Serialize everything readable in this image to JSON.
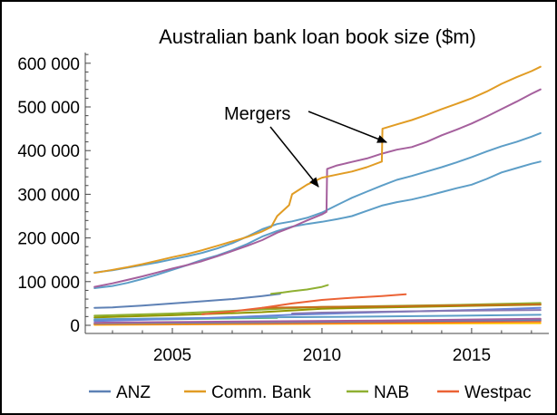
{
  "chart_data": {
    "type": "line",
    "title": "Australian bank loan book size ($m)",
    "xlabel": "",
    "ylabel": "",
    "xlim": [
      2002.09,
      2017.58
    ],
    "ylim": [
      -18700,
      624500
    ],
    "xticks": [
      2005,
      2010,
      2015
    ],
    "xtick_labels": [
      "2005",
      "2010",
      "2015"
    ],
    "yticks": [
      0,
      100000,
      200000,
      300000,
      400000,
      500000,
      600000
    ],
    "ytick_labels": [
      "0",
      "100 000",
      "200 000",
      "300 000",
      "400 000",
      "500 000",
      "600 000"
    ],
    "grid": false,
    "legend": {
      "position": "bottom",
      "entries": [
        {
          "label": "ANZ",
          "color": "#5e81b5"
        },
        {
          "label": "Comm. Bank",
          "color": "#e19c24"
        },
        {
          "label": "NAB",
          "color": "#8fb032"
        },
        {
          "label": "Westpac",
          "color": "#eb6235"
        }
      ]
    },
    "annotations": [
      {
        "text": "Mergers"
      }
    ],
    "series": [
      {
        "color": "#ffbf00",
        "x": [
          2002.4,
          2009.0,
          2017.3
        ],
        "y": [
          1000,
          3000,
          5000
        ]
      },
      {
        "color": "#eb6235",
        "x": [
          2002.4,
          2008.0,
          2012.0,
          2017.3
        ],
        "y": [
          2000,
          4000,
          6000,
          9000
        ]
      },
      {
        "color": "#e19c24",
        "x": [
          2002.4,
          2008.0,
          2012.0,
          2017.3
        ],
        "y": [
          3000,
          6000,
          9000,
          13000
        ]
      },
      {
        "color": "#5e81b5",
        "x": [
          2002.4,
          2010.0,
          2017.3
        ],
        "y": [
          5000,
          8000,
          12000
        ]
      },
      {
        "color": "#a5609d",
        "x": [
          2002.4,
          2008.0,
          2012.0,
          2017.3
        ],
        "y": [
          6000,
          9000,
          11000,
          15000
        ]
      },
      {
        "color": "#47b66d",
        "x": [
          2002.4,
          2005.0,
          2008.5
        ],
        "y": [
          12000,
          14000,
          17000
        ]
      },
      {
        "color": "#5d9ec7",
        "x": [
          2002.4,
          2008.0,
          2012.0,
          2017.3
        ],
        "y": [
          14000,
          18000,
          20000,
          24000
        ]
      },
      {
        "color": "#6685d9",
        "x": [
          2002.4,
          2006.0,
          2009.0,
          2012.0,
          2015.0,
          2017.3
        ],
        "y": [
          10000,
          16000,
          24000,
          30000,
          35000,
          40000
        ]
      },
      {
        "color": "#8778b3",
        "x": [
          2009.0,
          2010.0,
          2012.0,
          2014.0,
          2017.3
        ],
        "y": [
          27000,
          29000,
          31000,
          33000,
          35000
        ]
      },
      {
        "color": "#929600",
        "x": [
          2002.4,
          2005.0,
          2008.0,
          2010.0,
          2013.0,
          2017.3
        ],
        "y": [
          18000,
          23000,
          30000,
          38000,
          42000,
          47000
        ]
      },
      {
        "color": "#8fb032",
        "x": [
          2002.4,
          2005.0,
          2008.0,
          2010.0,
          2012.0,
          2014.0,
          2017.3
        ],
        "y": [
          22000,
          27000,
          36000,
          42000,
          44000,
          46000,
          51000
        ]
      },
      {
        "color": "#c56e1a",
        "x": [
          2008.0,
          2010.0,
          2012.0,
          2014.0,
          2017.3
        ],
        "y": [
          40000,
          42000,
          43000,
          45000,
          48000
        ]
      },
      {
        "color": "#5e81b5",
        "x": [
          2002.4,
          2003.0,
          2004.0,
          2005.0,
          2006.0,
          2007.0,
          2008.0,
          2008.6
        ],
        "y": [
          40000,
          41000,
          45000,
          50000,
          55000,
          60000,
          67000,
          72000
        ]
      },
      {
        "color": "#8fb032",
        "x": [
          2008.3,
          2008.7,
          2009.0,
          2009.5,
          2010.0,
          2010.2
        ],
        "y": [
          72000,
          75000,
          78000,
          82000,
          88000,
          92000
        ]
      },
      {
        "color": "#eb6235",
        "x": [
          2006.0,
          2007.0,
          2008.0,
          2009.0,
          2010.0,
          2011.0,
          2012.0,
          2012.8
        ],
        "y": [
          25000,
          32000,
          40000,
          50000,
          58000,
          63000,
          67000,
          71000
        ]
      },
      {
        "color": "#5d9ec7",
        "x": [
          2002.4,
          2003.0,
          2003.5,
          2004.0,
          2004.5,
          2005.0,
          2005.5,
          2006.0,
          2006.5,
          2007.0,
          2007.5,
          2008.0,
          2008.5,
          2009.0,
          2009.5,
          2010.0,
          2010.5,
          2011.0,
          2011.5,
          2012.0,
          2012.5,
          2013.0,
          2013.5,
          2014.0,
          2014.5,
          2015.0,
          2015.5,
          2016.0,
          2016.5,
          2017.0,
          2017.3
        ],
        "y": [
          85000,
          90000,
          97000,
          106000,
          116000,
          127000,
          138000,
          150000,
          160000,
          172000,
          186000,
          203000,
          216000,
          226000,
          232000,
          237000,
          243000,
          250000,
          262000,
          274000,
          282000,
          288000,
          296000,
          305000,
          314000,
          322000,
          335000,
          350000,
          360000,
          370000,
          375000
        ]
      },
      {
        "color": "#5d9ec7",
        "x": [
          2002.4,
          2003.0,
          2003.5,
          2004.0,
          2004.5,
          2005.0,
          2005.5,
          2006.0,
          2006.5,
          2007.0,
          2007.5,
          2008.0,
          2008.5,
          2009.0,
          2009.5,
          2010.0,
          2010.5,
          2011.0,
          2011.5,
          2012.0,
          2012.5,
          2013.0,
          2013.5,
          2014.0,
          2014.5,
          2015.0,
          2015.5,
          2016.0,
          2016.5,
          2017.0,
          2017.3
        ],
        "y": [
          121000,
          126000,
          132000,
          138000,
          144000,
          151000,
          158000,
          166000,
          176000,
          188000,
          203000,
          220000,
          232000,
          238000,
          246000,
          258000,
          275000,
          292000,
          306000,
          320000,
          333000,
          342000,
          352000,
          362000,
          373000,
          385000,
          398000,
          410000,
          420000,
          432000,
          440000
        ]
      },
      {
        "color": "#a5609d",
        "x": [
          2002.4,
          2003.0,
          2003.5,
          2004.0,
          2004.5,
          2005.0,
          2005.5,
          2006.0,
          2006.5,
          2007.0,
          2007.5,
          2008.0,
          2008.5,
          2009.0,
          2009.5,
          2010.0,
          2010.15,
          2010.17,
          2010.5,
          2011.0,
          2011.5,
          2012.0,
          2012.5,
          2013.0,
          2013.5,
          2014.0,
          2014.5,
          2015.0,
          2015.5,
          2016.0,
          2016.5,
          2017.0,
          2017.3
        ],
        "y": [
          88000,
          96000,
          104000,
          112000,
          121000,
          130000,
          138000,
          147000,
          158000,
          170000,
          182000,
          195000,
          212000,
          225000,
          240000,
          254000,
          260000,
          358000,
          366000,
          374000,
          382000,
          393000,
          402000,
          408000,
          420000,
          435000,
          448000,
          462000,
          478000,
          495000,
          512000,
          530000,
          540000
        ]
      },
      {
        "color": "#e19c24",
        "x": [
          2002.4,
          2003.0,
          2003.5,
          2004.0,
          2004.5,
          2005.0,
          2005.5,
          2006.0,
          2006.5,
          2007.0,
          2007.5,
          2008.0,
          2008.3,
          2008.5,
          2008.9,
          2009.0,
          2009.5,
          2010.0,
          2010.5,
          2011.0,
          2011.5,
          2012.0,
          2012.02,
          2012.5,
          2013.0,
          2013.5,
          2014.0,
          2014.5,
          2015.0,
          2015.5,
          2016.0,
          2016.5,
          2017.0,
          2017.3
        ],
        "y": [
          120000,
          127000,
          133000,
          140000,
          148000,
          156000,
          163000,
          172000,
          182000,
          192000,
          202000,
          215000,
          225000,
          250000,
          275000,
          300000,
          322000,
          338000,
          345000,
          352000,
          362000,
          375000,
          450000,
          460000,
          470000,
          482000,
          495000,
          507000,
          520000,
          535000,
          553000,
          568000,
          582000,
          592000
        ]
      }
    ]
  }
}
